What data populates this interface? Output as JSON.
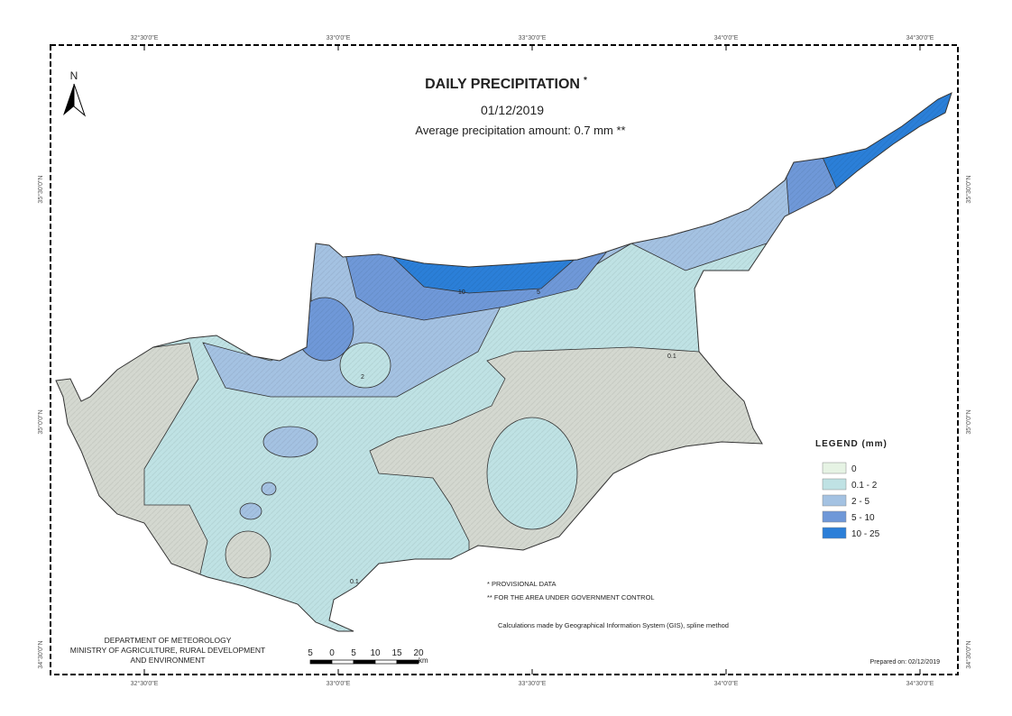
{
  "title": "DAILY PRECIPITATION",
  "title_mark": "*",
  "date": "01/12/2019",
  "subtitle": "Average precipitation amount: 0.7 mm **",
  "north": "N",
  "coords": {
    "top": [
      "32°30'0\"E",
      "33°0'0\"E",
      "33°30'0\"E",
      "34°0'0\"E",
      "34°30'0\"E"
    ],
    "side": [
      "35°30'0\"N",
      "35°0'0\"N",
      "34°30'0\"N"
    ]
  },
  "legend": {
    "title": "LEGEND (mm)",
    "items": [
      {
        "label": "0",
        "color": "#e6f3e4"
      },
      {
        "label": "0.1 - 2",
        "color": "#bfe2e4"
      },
      {
        "label": "2 - 5",
        "color": "#a4c2e2"
      },
      {
        "label": "5 - 10",
        "color": "#6f98d8"
      },
      {
        "label": "10 - 25",
        "color": "#2b7fd8"
      }
    ]
  },
  "contour_labels": [
    "0.1",
    "2",
    "5",
    "10"
  ],
  "notes": [
    "* PROVISIONAL DATA",
    "** FOR THE AREA UNDER GOVERNMENT CONTROL"
  ],
  "method": "Calculations made by Geographical Information System (GIS), spline method",
  "department": [
    "DEPARTMENT OF METEOROLOGY",
    "MINISTRY OF AGRICULTURE, RURAL DEVELOPMENT",
    "AND ENVIRONMENT"
  ],
  "scale": {
    "labels": [
      "5",
      "0",
      "5",
      "10",
      "15",
      "20"
    ],
    "unit": "km"
  },
  "prepared": "Prepared on: 02/12/2019"
}
